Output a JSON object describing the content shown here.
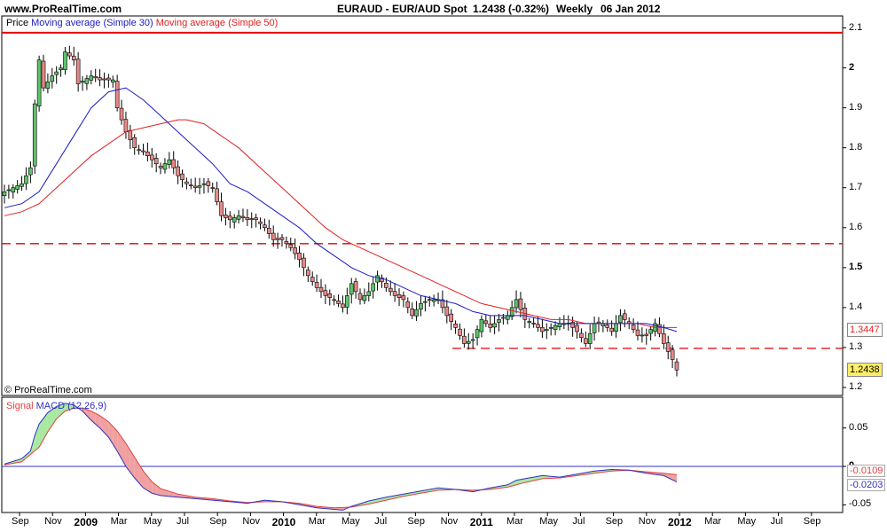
{
  "header": {
    "site": "www.ProRealTime.com",
    "symbol": "EURAUD - EUR/AUD Spot",
    "quote": "1.2438 (-0.32%)",
    "period": "Weekly",
    "date": "06 Jan 2012"
  },
  "copyright": "© ProRealTime.com",
  "colors": {
    "bull_candle": "#5fc36b",
    "bear_candle": "#e58a8a",
    "ma30": "#1a1ac8",
    "ma50": "#e02020",
    "level_line": "#e00000",
    "macd": "#3030c0",
    "signal": "#e04040",
    "fill_pos": "#a8e8a0",
    "fill_neg": "#f0a0a0",
    "last_price_box": "#ffee66"
  },
  "chart_data": [
    {
      "type": "candlestick",
      "legend": [
        "Price",
        "Moving average (Simple 30)",
        "Moving average (Simple 50)"
      ],
      "y_ticks": [
        "2.1",
        "2",
        "1.9",
        "1.8",
        "1.7",
        "1.6",
        "1.5",
        "1.4",
        "1.3",
        "1.2"
      ],
      "y_ticks_bold": [
        "2",
        "1.5"
      ],
      "ylim": [
        1.18,
        2.13
      ],
      "x_ticks": [
        "Sep",
        "Nov",
        "2009",
        "Mar",
        "May",
        "Jul",
        "Sep",
        "Nov",
        "2010",
        "Mar",
        "May",
        "Jul",
        "Sep",
        "Nov",
        "2011",
        "Mar",
        "May",
        "Jul",
        "Sep",
        "Nov",
        "2012",
        "Mar",
        "May",
        "Jul",
        "Sep"
      ],
      "x_ticks_bold": [
        "2009",
        "2010",
        "2011",
        "2012"
      ],
      "horizontal_lines": [
        {
          "value": 2.088,
          "style": "solid"
        },
        {
          "value": 1.56,
          "style": "dashed"
        },
        {
          "value": 1.298,
          "style": "dashed",
          "from": "Nov 2010"
        }
      ],
      "price_labels": [
        {
          "text": "1.3447",
          "value": 1.3447
        },
        {
          "text": "1.2438",
          "value": 1.2438
        }
      ],
      "close_path": [
        [
          0,
          1.69
        ],
        [
          4,
          1.71
        ],
        [
          6,
          1.75
        ],
        [
          7,
          1.91
        ],
        [
          8,
          2.02
        ],
        [
          9,
          1.95
        ],
        [
          11,
          1.98
        ],
        [
          13,
          2.0
        ],
        [
          14,
          2.04
        ],
        [
          16,
          2.02
        ],
        [
          17,
          1.96
        ],
        [
          20,
          1.98
        ],
        [
          22,
          1.97
        ],
        [
          25,
          1.97
        ],
        [
          26,
          1.9
        ],
        [
          28,
          1.84
        ],
        [
          30,
          1.8
        ],
        [
          32,
          1.79
        ],
        [
          34,
          1.77
        ],
        [
          36,
          1.75
        ],
        [
          38,
          1.77
        ],
        [
          40,
          1.73
        ],
        [
          42,
          1.71
        ],
        [
          44,
          1.7
        ],
        [
          46,
          1.71
        ],
        [
          48,
          1.7
        ],
        [
          50,
          1.63
        ],
        [
          52,
          1.62
        ],
        [
          54,
          1.63
        ],
        [
          56,
          1.62
        ],
        [
          58,
          1.62
        ],
        [
          60,
          1.6
        ],
        [
          62,
          1.57
        ],
        [
          64,
          1.57
        ],
        [
          66,
          1.55
        ],
        [
          68,
          1.52
        ],
        [
          70,
          1.48
        ],
        [
          72,
          1.45
        ],
        [
          74,
          1.43
        ],
        [
          76,
          1.42
        ],
        [
          78,
          1.4
        ],
        [
          80,
          1.46
        ],
        [
          82,
          1.42
        ],
        [
          84,
          1.44
        ],
        [
          86,
          1.48
        ],
        [
          88,
          1.45
        ],
        [
          90,
          1.43
        ],
        [
          92,
          1.42
        ],
        [
          94,
          1.38
        ],
        [
          96,
          1.41
        ],
        [
          98,
          1.42
        ],
        [
          100,
          1.42
        ],
        [
          102,
          1.38
        ],
        [
          104,
          1.35
        ],
        [
          106,
          1.31
        ],
        [
          108,
          1.32
        ],
        [
          110,
          1.37
        ],
        [
          112,
          1.35
        ],
        [
          114,
          1.37
        ],
        [
          116,
          1.38
        ],
        [
          118,
          1.42
        ],
        [
          120,
          1.37
        ],
        [
          122,
          1.36
        ],
        [
          124,
          1.34
        ],
        [
          126,
          1.35
        ],
        [
          128,
          1.36
        ],
        [
          130,
          1.36
        ],
        [
          132,
          1.34
        ],
        [
          134,
          1.31
        ],
        [
          136,
          1.36
        ],
        [
          138,
          1.36
        ],
        [
          140,
          1.34
        ],
        [
          142,
          1.38
        ],
        [
          144,
          1.36
        ],
        [
          146,
          1.33
        ],
        [
          148,
          1.33
        ],
        [
          150,
          1.36
        ],
        [
          152,
          1.31
        ],
        [
          154,
          1.27
        ],
        [
          155,
          1.2438
        ]
      ],
      "ma30_path": [
        [
          0,
          1.65
        ],
        [
          4,
          1.66
        ],
        [
          8,
          1.69
        ],
        [
          12,
          1.76
        ],
        [
          16,
          1.83
        ],
        [
          20,
          1.9
        ],
        [
          24,
          1.94
        ],
        [
          28,
          1.95
        ],
        [
          32,
          1.92
        ],
        [
          36,
          1.88
        ],
        [
          40,
          1.84
        ],
        [
          44,
          1.8
        ],
        [
          48,
          1.76
        ],
        [
          52,
          1.71
        ],
        [
          56,
          1.69
        ],
        [
          60,
          1.66
        ],
        [
          64,
          1.63
        ],
        [
          68,
          1.6
        ],
        [
          72,
          1.56
        ],
        [
          76,
          1.53
        ],
        [
          80,
          1.5
        ],
        [
          84,
          1.48
        ],
        [
          88,
          1.47
        ],
        [
          92,
          1.45
        ],
        [
          96,
          1.43
        ],
        [
          100,
          1.42
        ],
        [
          104,
          1.41
        ],
        [
          108,
          1.39
        ],
        [
          112,
          1.38
        ],
        [
          116,
          1.38
        ],
        [
          120,
          1.38
        ],
        [
          124,
          1.37
        ],
        [
          128,
          1.36
        ],
        [
          132,
          1.36
        ],
        [
          136,
          1.36
        ],
        [
          140,
          1.36
        ],
        [
          144,
          1.36
        ],
        [
          148,
          1.36
        ],
        [
          152,
          1.35
        ],
        [
          155,
          1.34
        ]
      ],
      "ma50_path": [
        [
          0,
          1.63
        ],
        [
          4,
          1.64
        ],
        [
          8,
          1.66
        ],
        [
          12,
          1.7
        ],
        [
          16,
          1.74
        ],
        [
          20,
          1.78
        ],
        [
          24,
          1.81
        ],
        [
          28,
          1.84
        ],
        [
          32,
          1.85
        ],
        [
          36,
          1.86
        ],
        [
          40,
          1.87
        ],
        [
          42,
          1.87
        ],
        [
          46,
          1.86
        ],
        [
          50,
          1.83
        ],
        [
          54,
          1.8
        ],
        [
          58,
          1.76
        ],
        [
          62,
          1.72
        ],
        [
          66,
          1.68
        ],
        [
          70,
          1.64
        ],
        [
          74,
          1.6
        ],
        [
          78,
          1.57
        ],
        [
          82,
          1.55
        ],
        [
          86,
          1.53
        ],
        [
          90,
          1.51
        ],
        [
          94,
          1.49
        ],
        [
          98,
          1.47
        ],
        [
          102,
          1.45
        ],
        [
          106,
          1.43
        ],
        [
          110,
          1.41
        ],
        [
          114,
          1.4
        ],
        [
          118,
          1.39
        ],
        [
          122,
          1.38
        ],
        [
          126,
          1.37
        ],
        [
          130,
          1.37
        ],
        [
          134,
          1.36
        ],
        [
          138,
          1.36
        ],
        [
          142,
          1.36
        ],
        [
          146,
          1.36
        ],
        [
          150,
          1.35
        ],
        [
          155,
          1.35
        ]
      ]
    },
    {
      "type": "line",
      "legend": [
        "Signal",
        "MACD (12,26,9)"
      ],
      "y_ticks": [
        "0.05",
        "0",
        "-0.05"
      ],
      "y_ticks_bold": [
        "0"
      ],
      "ylim": [
        -0.06,
        0.09
      ],
      "zero_line": 0,
      "price_labels": [
        {
          "text": "-0.0109",
          "value": -0.0109
        },
        {
          "text": "-0.0203",
          "value": -0.0203
        }
      ],
      "macd_path": [
        [
          0,
          0.003
        ],
        [
          4,
          0.01
        ],
        [
          6,
          0.02
        ],
        [
          7,
          0.04
        ],
        [
          8,
          0.055
        ],
        [
          10,
          0.07
        ],
        [
          12,
          0.078
        ],
        [
          14,
          0.082
        ],
        [
          16,
          0.08
        ],
        [
          18,
          0.072
        ],
        [
          20,
          0.06
        ],
        [
          22,
          0.05
        ],
        [
          24,
          0.038
        ],
        [
          26,
          0.02
        ],
        [
          28,
          0.0
        ],
        [
          30,
          -0.015
        ],
        [
          32,
          -0.028
        ],
        [
          34,
          -0.035
        ],
        [
          36,
          -0.038
        ],
        [
          40,
          -0.04
        ],
        [
          44,
          -0.042
        ],
        [
          48,
          -0.044
        ],
        [
          52,
          -0.046
        ],
        [
          56,
          -0.048
        ],
        [
          60,
          -0.044
        ],
        [
          64,
          -0.046
        ],
        [
          68,
          -0.05
        ],
        [
          72,
          -0.054
        ],
        [
          76,
          -0.056
        ],
        [
          78,
          -0.057
        ],
        [
          80,
          -0.052
        ],
        [
          84,
          -0.045
        ],
        [
          88,
          -0.04
        ],
        [
          92,
          -0.036
        ],
        [
          96,
          -0.032
        ],
        [
          100,
          -0.028
        ],
        [
          104,
          -0.03
        ],
        [
          108,
          -0.033
        ],
        [
          112,
          -0.028
        ],
        [
          116,
          -0.024
        ],
        [
          118,
          -0.018
        ],
        [
          120,
          -0.016
        ],
        [
          124,
          -0.012
        ],
        [
          128,
          -0.014
        ],
        [
          132,
          -0.01
        ],
        [
          136,
          -0.006
        ],
        [
          140,
          -0.004
        ],
        [
          144,
          -0.005
        ],
        [
          148,
          -0.009
        ],
        [
          152,
          -0.012
        ],
        [
          155,
          -0.0203
        ]
      ],
      "signal_path": [
        [
          0,
          0.002
        ],
        [
          4,
          0.006
        ],
        [
          8,
          0.025
        ],
        [
          10,
          0.045
        ],
        [
          12,
          0.062
        ],
        [
          14,
          0.072
        ],
        [
          16,
          0.076
        ],
        [
          18,
          0.076
        ],
        [
          20,
          0.072
        ],
        [
          22,
          0.066
        ],
        [
          24,
          0.058
        ],
        [
          26,
          0.046
        ],
        [
          28,
          0.03
        ],
        [
          30,
          0.012
        ],
        [
          32,
          -0.006
        ],
        [
          34,
          -0.02
        ],
        [
          36,
          -0.029
        ],
        [
          40,
          -0.036
        ],
        [
          44,
          -0.04
        ],
        [
          48,
          -0.042
        ],
        [
          52,
          -0.045
        ],
        [
          56,
          -0.047
        ],
        [
          60,
          -0.046
        ],
        [
          64,
          -0.046
        ],
        [
          68,
          -0.048
        ],
        [
          72,
          -0.052
        ],
        [
          76,
          -0.054
        ],
        [
          80,
          -0.053
        ],
        [
          84,
          -0.049
        ],
        [
          88,
          -0.044
        ],
        [
          92,
          -0.039
        ],
        [
          96,
          -0.035
        ],
        [
          100,
          -0.031
        ],
        [
          104,
          -0.03
        ],
        [
          108,
          -0.031
        ],
        [
          112,
          -0.03
        ],
        [
          116,
          -0.027
        ],
        [
          120,
          -0.021
        ],
        [
          124,
          -0.016
        ],
        [
          128,
          -0.015
        ],
        [
          132,
          -0.012
        ],
        [
          136,
          -0.009
        ],
        [
          140,
          -0.006
        ],
        [
          144,
          -0.005
        ],
        [
          148,
          -0.007
        ],
        [
          152,
          -0.009
        ],
        [
          155,
          -0.0109
        ]
      ]
    }
  ]
}
